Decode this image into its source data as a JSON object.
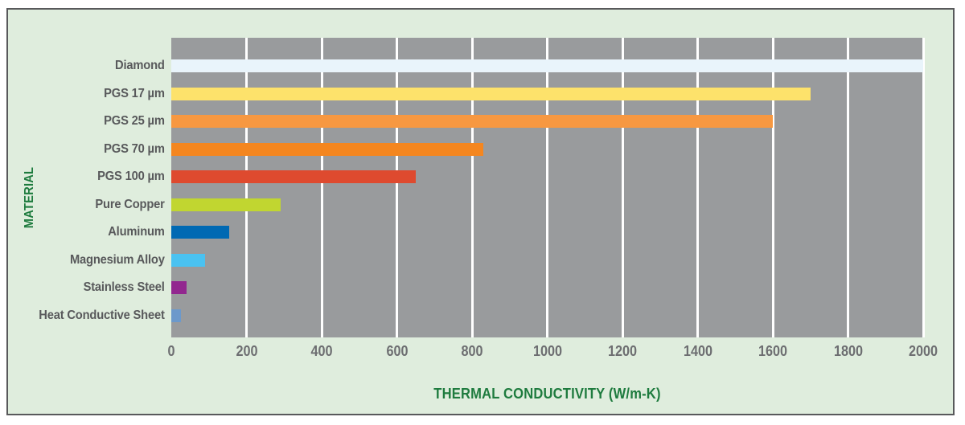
{
  "panel": {
    "background_color": "#DFEDDD",
    "border_color": "#58595B"
  },
  "chart_data": {
    "type": "bar",
    "orientation": "horizontal",
    "title": "",
    "xlabel": "THERMAL CONDUCTIVITY (W/m-K)",
    "ylabel": "MATERIAL",
    "categories": [
      "Diamond",
      "PGS 17 µm",
      "PGS 25 µm",
      "PGS 70 µm",
      "PGS 100 µm",
      "Pure Copper",
      "Aluminum",
      "Magnesium Alloy",
      "Stainless Steel",
      "Heat Conductive Sheet"
    ],
    "values": [
      2000,
      1700,
      1600,
      830,
      650,
      290,
      155,
      90,
      40,
      25
    ],
    "bar_colors": [
      "#E9F4FB",
      "#FDE26B",
      "#F79841",
      "#F4861F",
      "#DE4A2F",
      "#C1D630",
      "#0069B3",
      "#4AC2F1",
      "#92278F",
      "#6C99CB"
    ],
    "xlim": [
      0,
      2000
    ],
    "x_ticks": [
      0,
      200,
      400,
      600,
      800,
      1000,
      1200,
      1400,
      1600,
      1800,
      2000
    ],
    "grid": true,
    "legend": "none",
    "plot_background_color": "#999B9D",
    "gridline_color": "#FFFFFF",
    "tick_label_color": "#6D6E71",
    "category_label_color": "#58595B",
    "axis_title_color": "#1E7B3E"
  }
}
